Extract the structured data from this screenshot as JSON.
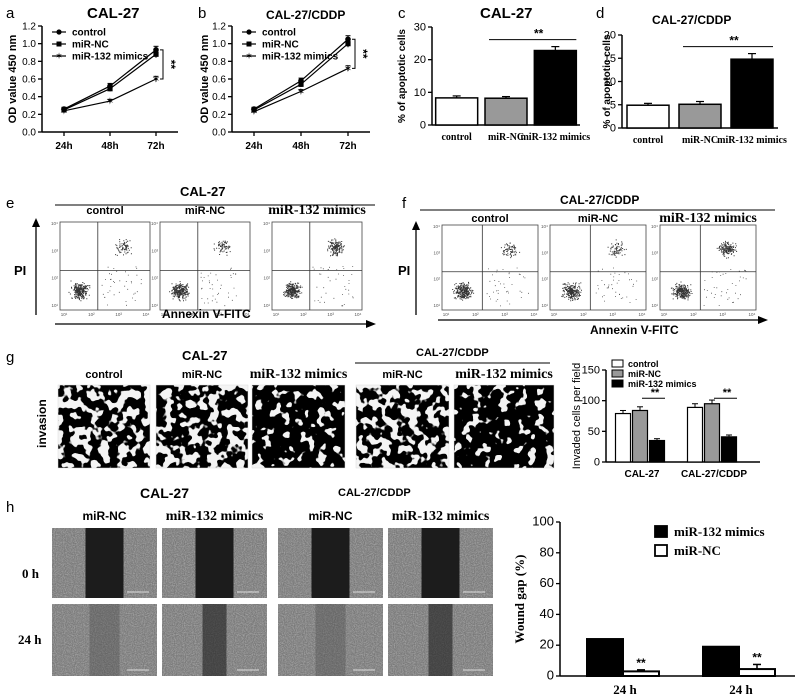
{
  "panels": {
    "a": {
      "letter": "a",
      "title": "CAL-27"
    },
    "b": {
      "letter": "b",
      "title": "CAL-27/CDDP"
    },
    "c": {
      "letter": "c",
      "title": "CAL-27"
    },
    "d": {
      "letter": "d",
      "title": "CAL-27/CDDP"
    },
    "e": {
      "letter": "e",
      "title": "CAL-27",
      "xaxis": "Annexin V-FITC",
      "yaxis": "PI",
      "cols": [
        "control",
        "miR-NC",
        "miR-132 mimics"
      ]
    },
    "f": {
      "letter": "f",
      "title": "CAL-27/CDDP",
      "xaxis": "Annexin V-FITC",
      "yaxis": "PI",
      "cols": [
        "control",
        "miR-NC",
        "miR-132 mimics"
      ]
    },
    "g": {
      "letter": "g",
      "title1": "CAL-27",
      "title2": "CAL-27/CDDP",
      "row_label": "invasion",
      "cols1": [
        "control",
        "miR-NC",
        "miR-132 mimics"
      ],
      "cols2": [
        "miR-NC",
        "miR-132 mimics"
      ]
    },
    "h": {
      "letter": "h",
      "title1": "CAL-27",
      "title2": "CAL-27/CDDP",
      "cols": [
        "miR-NC",
        "miR-132 mimics",
        "miR-NC",
        "miR-132 mimics"
      ],
      "rows": [
        "0 h",
        "24 h"
      ]
    }
  },
  "flow_ticks": [
    "10¹",
    "10²",
    "10³",
    "10⁴"
  ],
  "chart_data": [
    {
      "id": "a",
      "type": "line",
      "title": "CAL-27",
      "ylabel": "OD value 450 nm",
      "xlabel": "",
      "categories": [
        "24h",
        "48h",
        "72h"
      ],
      "ylim": [
        0,
        1.2
      ],
      "yticks": [
        "0.0",
        "0.2",
        "0.4",
        "0.6",
        "0.8",
        "1.0",
        "1.2"
      ],
      "series": [
        {
          "name": "control",
          "values": [
            0.26,
            0.52,
            0.93
          ],
          "errors": [
            0.02,
            0.03,
            0.04
          ],
          "marker": "circle"
        },
        {
          "name": "miR-NC",
          "values": [
            0.25,
            0.49,
            0.88
          ],
          "errors": [
            0.02,
            0.03,
            0.04
          ],
          "marker": "square"
        },
        {
          "name": "miR-132 mimics",
          "values": [
            0.24,
            0.35,
            0.6
          ],
          "errors": [
            0.02,
            0.02,
            0.03
          ],
          "marker": "star"
        }
      ],
      "annotation": "**",
      "legend": "top-left"
    },
    {
      "id": "b",
      "type": "line",
      "title": "CAL-27/CDDP",
      "ylabel": "OD value 450 nm",
      "xlabel": "",
      "categories": [
        "24h",
        "48h",
        "72h"
      ],
      "ylim": [
        0,
        1.2
      ],
      "yticks": [
        "0.0",
        "0.2",
        "0.4",
        "0.6",
        "0.8",
        "1.0",
        "1.2"
      ],
      "series": [
        {
          "name": "control",
          "values": [
            0.26,
            0.58,
            1.05
          ],
          "errors": [
            0.02,
            0.03,
            0.04
          ],
          "marker": "circle"
        },
        {
          "name": "miR-NC",
          "values": [
            0.25,
            0.54,
            1.0
          ],
          "errors": [
            0.02,
            0.03,
            0.04
          ],
          "marker": "square"
        },
        {
          "name": "miR-132 mimics",
          "values": [
            0.23,
            0.46,
            0.72
          ],
          "errors": [
            0.02,
            0.02,
            0.03
          ],
          "marker": "star"
        }
      ],
      "annotation": "**",
      "legend": "top-left"
    },
    {
      "id": "c",
      "type": "bar",
      "title": "CAL-27",
      "ylabel": "% of apoptotic cells",
      "categories": [
        "control",
        "miR-NC",
        "miR-132 mimics"
      ],
      "values": [
        8.3,
        8.2,
        22.8
      ],
      "errors": [
        0.6,
        0.5,
        1.2
      ],
      "fills": [
        "#ffffff",
        "#999999",
        "#000000"
      ],
      "ylim": [
        0,
        30
      ],
      "yticks": [
        "0",
        "10",
        "20",
        "30"
      ],
      "annotation": "**"
    },
    {
      "id": "d",
      "type": "bar",
      "title": "CAL-27/CDDP",
      "ylabel": "% of apoptotic cells",
      "categories": [
        "control",
        "miR-NC",
        "miR-132 mimics"
      ],
      "values": [
        4.9,
        5.1,
        14.8
      ],
      "errors": [
        0.4,
        0.6,
        1.2
      ],
      "fills": [
        "#ffffff",
        "#999999",
        "#000000"
      ],
      "ylim": [
        0,
        20
      ],
      "yticks": [
        "0",
        "5",
        "10",
        "15",
        "20"
      ],
      "annotation": "**"
    },
    {
      "id": "g",
      "type": "bar",
      "ylabel": "Invaded cells per field",
      "categories": [
        "CAL-27",
        "CAL-27/CDDP"
      ],
      "series": [
        {
          "name": "control",
          "values": [
            79,
            89
          ],
          "errors": [
            5,
            6
          ],
          "fill": "#ffffff"
        },
        {
          "name": "miR-NC",
          "values": [
            84,
            95
          ],
          "errors": [
            6,
            6
          ],
          "fill": "#999999"
        },
        {
          "name": "miR-132 mimics",
          "values": [
            35,
            41
          ],
          "errors": [
            3,
            3
          ],
          "fill": "#000000"
        }
      ],
      "ylim": [
        0,
        150
      ],
      "yticks": [
        "0",
        "50",
        "100",
        "150"
      ],
      "annotation": "**",
      "legend": "top-left"
    },
    {
      "id": "h",
      "type": "bar",
      "ylabel": "Wound gap (%)",
      "categories": [
        "24 h",
        "24 h"
      ],
      "series": [
        {
          "name": "miR-132 mimics",
          "values": [
            24,
            19
          ],
          "errors": [
            0,
            0
          ],
          "fill": "#000000"
        },
        {
          "name": "miR-NC",
          "values": [
            3,
            4.5
          ],
          "errors": [
            1,
            3
          ],
          "fill": "#ffffff"
        }
      ],
      "ylim": [
        0,
        100
      ],
      "yticks": [
        "0",
        "20",
        "40",
        "60",
        "80",
        "100"
      ],
      "annotation": "**",
      "legend": "top-right"
    }
  ]
}
